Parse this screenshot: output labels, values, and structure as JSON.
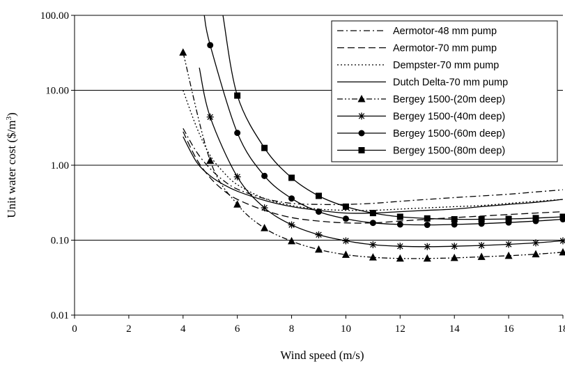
{
  "chart_data": {
    "type": "line",
    "xlabel": "Wind speed (m/s)",
    "ylabel": "Unit water cost ($/m",
    "ylabel_sup": "3",
    "ylabel_end": ")",
    "xlim": [
      0,
      18
    ],
    "ylim": [
      0.01,
      100
    ],
    "y_scale": "log",
    "x_ticks": [
      0,
      2,
      4,
      6,
      8,
      10,
      12,
      14,
      16,
      18
    ],
    "x_tick_labels": [
      "0",
      "2",
      "4",
      "6",
      "8",
      "10",
      "12",
      "14",
      "16",
      "18"
    ],
    "y_ticks": [
      0.01,
      0.1,
      1,
      10,
      100
    ],
    "y_tick_labels": [
      "0.01",
      "0.10",
      "1.00",
      "10.00",
      "100.00"
    ],
    "grid": "horizontal",
    "legend_position": "top-right",
    "series": [
      {
        "name": "Aermotor-48 mm pump",
        "dash": "dashdot",
        "marker": "none",
        "color": "#000000",
        "x": [
          4,
          4.5,
          5,
          5.5,
          6,
          7,
          8,
          9,
          10,
          11,
          12,
          13,
          14,
          15,
          16,
          17,
          18
        ],
        "y": [
          3.1,
          1.5,
          0.9,
          0.62,
          0.48,
          0.36,
          0.31,
          0.3,
          0.3,
          0.31,
          0.33,
          0.35,
          0.37,
          0.39,
          0.41,
          0.44,
          0.47
        ]
      },
      {
        "name": "Aermotor-70 mm pump",
        "dash": "dashed",
        "marker": "none",
        "color": "#000000",
        "x": [
          4,
          4.5,
          5,
          5.5,
          6,
          7,
          8,
          9,
          10,
          11,
          12,
          13,
          14,
          15,
          16,
          17,
          18
        ],
        "y": [
          2.8,
          1.2,
          0.68,
          0.46,
          0.35,
          0.25,
          0.2,
          0.18,
          0.17,
          0.17,
          0.18,
          0.19,
          0.2,
          0.21,
          0.22,
          0.23,
          0.24
        ]
      },
      {
        "name": "Dempster-70 mm pump",
        "dash": "dotted",
        "marker": "none",
        "color": "#000000",
        "x": [
          4,
          4.5,
          5,
          5.5,
          6,
          7,
          8,
          9,
          10,
          11,
          12,
          13,
          14,
          15,
          16,
          17,
          18
        ],
        "y": [
          10,
          3.2,
          1.35,
          0.8,
          0.55,
          0.36,
          0.29,
          0.26,
          0.25,
          0.25,
          0.26,
          0.27,
          0.28,
          0.29,
          0.31,
          0.33,
          0.35
        ]
      },
      {
        "name": "Dutch Delta-70 mm pump",
        "dash": "solid",
        "marker": "none",
        "color": "#000000",
        "x": [
          4,
          4.5,
          5,
          5.5,
          6,
          7,
          8,
          9,
          10,
          11,
          12,
          13,
          14,
          15,
          16,
          17,
          18
        ],
        "y": [
          2.4,
          1.1,
          0.72,
          0.55,
          0.45,
          0.34,
          0.28,
          0.25,
          0.23,
          0.23,
          0.24,
          0.25,
          0.26,
          0.28,
          0.3,
          0.32,
          0.35
        ]
      },
      {
        "name": "Bergey 1500-(20m deep)",
        "dash": "dashdotdot",
        "marker": "triangle",
        "color": "#000000",
        "x": [
          4,
          5,
          6,
          7,
          8,
          9,
          10,
          11,
          12,
          13,
          14,
          15,
          16,
          17,
          18
        ],
        "y": [
          32,
          1.15,
          0.3,
          0.145,
          0.097,
          0.075,
          0.064,
          0.059,
          0.057,
          0.057,
          0.058,
          0.06,
          0.062,
          0.065,
          0.069
        ]
      },
      {
        "name": "Bergey 1500-(40m deep)",
        "dash": "solid",
        "marker": "star",
        "color": "#000000",
        "x": [
          4.6,
          5,
          6,
          7,
          8,
          9,
          10,
          11,
          12,
          13,
          14,
          15,
          16,
          17,
          18
        ],
        "y": [
          20,
          4.4,
          0.7,
          0.27,
          0.16,
          0.118,
          0.098,
          0.087,
          0.083,
          0.082,
          0.083,
          0.085,
          0.088,
          0.092,
          0.098
        ],
        "marker_from": 1
      },
      {
        "name": "Bergey 1500-(60m deep)",
        "dash": "solid",
        "marker": "circle",
        "color": "#000000",
        "x": [
          4.78,
          5,
          6,
          7,
          8,
          9,
          10,
          11,
          12,
          13,
          14,
          15,
          16,
          17,
          18
        ],
        "y": [
          100,
          40,
          2.7,
          0.72,
          0.36,
          0.24,
          0.193,
          0.17,
          0.162,
          0.16,
          0.162,
          0.166,
          0.172,
          0.18,
          0.19
        ],
        "marker_from": 1
      },
      {
        "name": "Bergey 1500-(80m deep)",
        "dash": "solid",
        "marker": "square",
        "color": "#000000",
        "x": [
          5.47,
          6,
          7,
          8,
          9,
          10,
          11,
          12,
          13,
          14,
          15,
          16,
          17,
          18
        ],
        "y": [
          100,
          8.5,
          1.7,
          0.68,
          0.39,
          0.28,
          0.23,
          0.205,
          0.195,
          0.19,
          0.19,
          0.192,
          0.197,
          0.205
        ],
        "marker_from": 1
      }
    ]
  }
}
